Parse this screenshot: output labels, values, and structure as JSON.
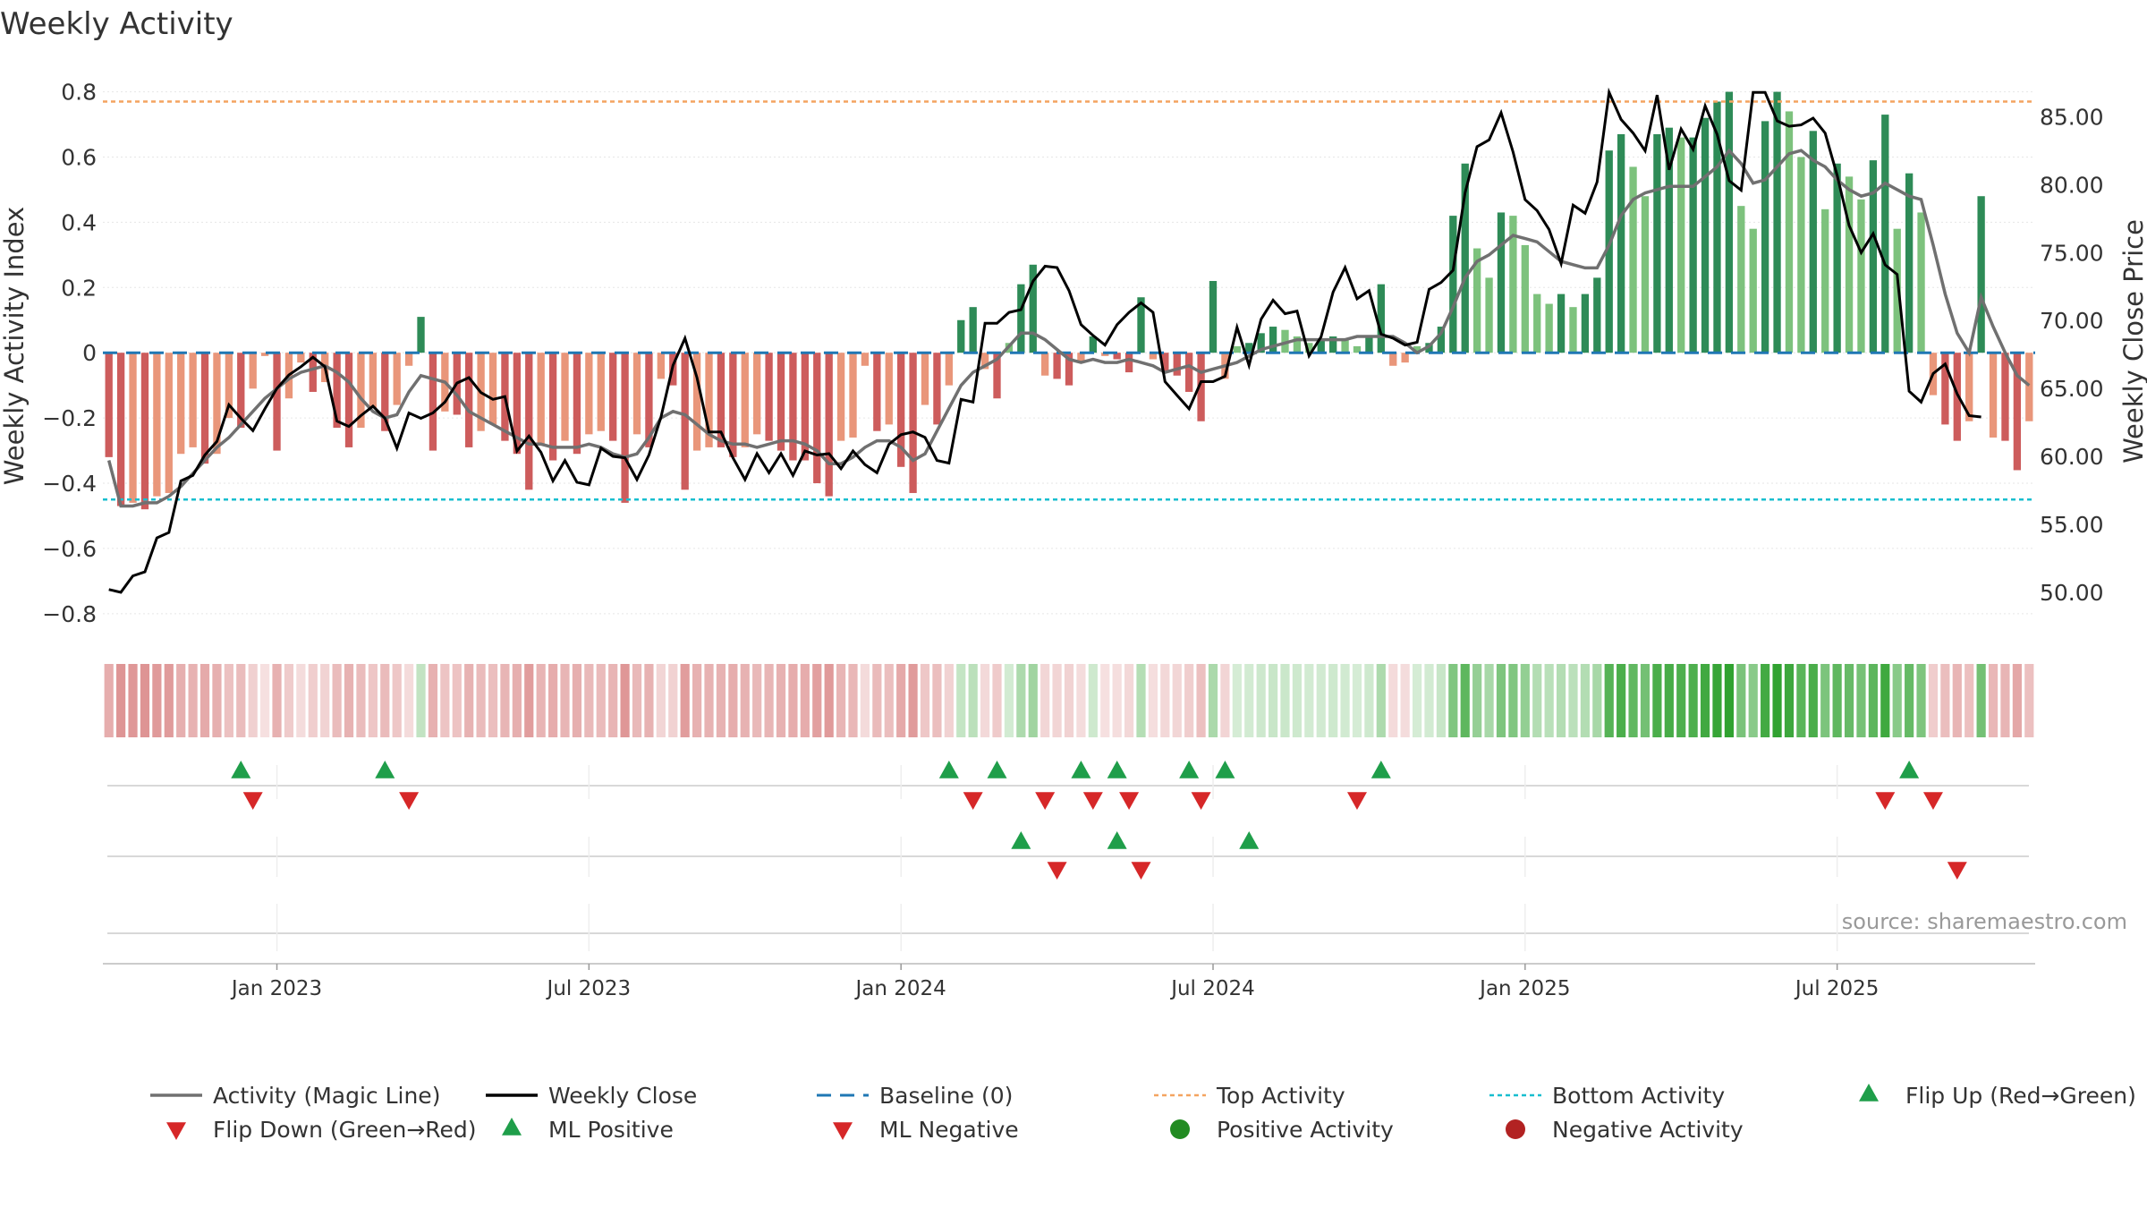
{
  "chart_data": {
    "type": "bar",
    "title": "Weekly Activity",
    "ylabel": "Weekly Activity Index",
    "ylabel_right": "Weekly Close Price",
    "source": "source: sharemaestro.com",
    "ylim": [
      -0.88,
      0.84
    ],
    "ylim_right": [
      46.5,
      87.8
    ],
    "yticks": [
      {
        "v": 0.8,
        "label": "0.8"
      },
      {
        "v": 0.6,
        "label": "0.6"
      },
      {
        "v": 0.4,
        "label": "0.4"
      },
      {
        "v": 0.2,
        "label": "0.2"
      },
      {
        "v": 0,
        "label": "0"
      },
      {
        "v": -0.2,
        "label": "−0.2"
      },
      {
        "v": -0.4,
        "label": "−0.4"
      },
      {
        "v": -0.6,
        "label": "−0.6"
      },
      {
        "v": -0.8,
        "label": "−0.8"
      }
    ],
    "yticks_right": [
      {
        "v": 85,
        "label": "85.00"
      },
      {
        "v": 80,
        "label": "80.00"
      },
      {
        "v": 75,
        "label": "75.00"
      },
      {
        "v": 70,
        "label": "70.00"
      },
      {
        "v": 65,
        "label": "65.00"
      },
      {
        "v": 60,
        "label": "60.00"
      },
      {
        "v": 55,
        "label": "55.00"
      },
      {
        "v": 50,
        "label": "50.00"
      }
    ],
    "xticks": [
      {
        "week": 14.5,
        "label": "Jan 2023"
      },
      {
        "week": 40.5,
        "label": "Jul 2023"
      },
      {
        "week": 66.5,
        "label": "Jan 2024"
      },
      {
        "week": 92.5,
        "label": "Jul 2024"
      },
      {
        "week": 118.5,
        "label": "Jan 2025"
      },
      {
        "week": 144.5,
        "label": "Jul 2025"
      }
    ],
    "top_activity": 0.77,
    "bottom_activity": -0.45,
    "activity_index": [
      -0.32,
      -0.47,
      -0.46,
      -0.48,
      -0.44,
      -0.43,
      -0.31,
      -0.29,
      -0.34,
      -0.31,
      -0.2,
      -0.23,
      -0.11,
      -0.01,
      -0.3,
      -0.14,
      -0.03,
      -0.12,
      -0.09,
      -0.23,
      -0.29,
      -0.23,
      -0.17,
      -0.24,
      -0.16,
      -0.04,
      0.11,
      -0.3,
      -0.18,
      -0.19,
      -0.29,
      -0.24,
      -0.22,
      -0.27,
      -0.31,
      -0.42,
      -0.28,
      -0.33,
      -0.27,
      -0.31,
      -0.25,
      -0.24,
      -0.27,
      -0.46,
      -0.25,
      -0.29,
      -0.08,
      -0.1,
      -0.42,
      -0.3,
      -0.29,
      -0.29,
      -0.32,
      -0.29,
      -0.25,
      -0.27,
      -0.3,
      -0.33,
      -0.33,
      -0.4,
      -0.44,
      -0.27,
      -0.26,
      -0.04,
      -0.24,
      -0.22,
      -0.35,
      -0.43,
      -0.16,
      -0.22,
      -0.1,
      0.1,
      0.14,
      -0.05,
      -0.14,
      0.03,
      0.21,
      0.27,
      -0.07,
      -0.08,
      -0.1,
      -0.03,
      0.05,
      -0.01,
      -0.02,
      -0.06,
      0.17,
      -0.02,
      -0.06,
      -0.07,
      -0.12,
      -0.21,
      0.22,
      -0.08,
      0.02,
      0.03,
      0.06,
      0.08,
      0.07,
      0.05,
      0.03,
      0.04,
      0.05,
      0.04,
      0.02,
      0.05,
      0.21,
      -0.04,
      -0.03,
      0.02,
      0.03,
      0.08,
      0.42,
      0.58,
      0.32,
      0.23,
      0.43,
      0.42,
      0.33,
      0.18,
      0.15,
      0.18,
      0.14,
      0.18,
      0.23,
      0.62,
      0.67,
      0.57,
      0.48,
      0.67,
      0.69,
      0.66,
      0.66,
      0.72,
      0.77,
      0.8,
      0.45,
      0.38,
      0.71,
      0.8,
      0.74,
      0.6,
      0.68,
      0.44,
      0.58,
      0.54,
      0.47,
      0.59,
      0.73,
      0.38,
      0.55,
      0.43,
      -0.13,
      -0.22,
      -0.27,
      -0.21,
      0.48,
      -0.26,
      -0.27,
      -0.36,
      -0.21
    ],
    "magic_line": [
      -0.33,
      -0.47,
      -0.47,
      -0.46,
      -0.46,
      -0.44,
      -0.41,
      -0.37,
      -0.33,
      -0.29,
      -0.26,
      -0.22,
      -0.18,
      -0.14,
      -0.11,
      -0.08,
      -0.06,
      -0.05,
      -0.04,
      -0.06,
      -0.09,
      -0.14,
      -0.18,
      -0.2,
      -0.19,
      -0.12,
      -0.07,
      -0.08,
      -0.09,
      -0.13,
      -0.18,
      -0.2,
      -0.22,
      -0.24,
      -0.26,
      -0.28,
      -0.28,
      -0.29,
      -0.29,
      -0.29,
      -0.28,
      -0.29,
      -0.31,
      -0.32,
      -0.31,
      -0.26,
      -0.2,
      -0.18,
      -0.19,
      -0.22,
      -0.25,
      -0.27,
      -0.28,
      -0.28,
      -0.29,
      -0.28,
      -0.27,
      -0.27,
      -0.28,
      -0.3,
      -0.34,
      -0.34,
      -0.32,
      -0.29,
      -0.27,
      -0.27,
      -0.29,
      -0.33,
      -0.31,
      -0.24,
      -0.17,
      -0.1,
      -0.06,
      -0.04,
      -0.02,
      0.02,
      0.06,
      0.06,
      0.04,
      0.01,
      -0.02,
      -0.03,
      -0.02,
      -0.03,
      -0.03,
      -0.02,
      -0.03,
      -0.04,
      -0.06,
      -0.05,
      -0.04,
      -0.06,
      -0.05,
      -0.04,
      -0.03,
      -0.01,
      0.01,
      0.02,
      0.03,
      0.04,
      0.04,
      0.04,
      0.04,
      0.04,
      0.05,
      0.05,
      0.05,
      0.05,
      0.03,
      0.0,
      0.02,
      0.06,
      0.14,
      0.23,
      0.28,
      0.3,
      0.33,
      0.36,
      0.35,
      0.34,
      0.31,
      0.28,
      0.27,
      0.26,
      0.26,
      0.33,
      0.42,
      0.47,
      0.49,
      0.5,
      0.51,
      0.51,
      0.51,
      0.54,
      0.57,
      0.62,
      0.58,
      0.52,
      0.53,
      0.57,
      0.61,
      0.62,
      0.59,
      0.57,
      0.53,
      0.5,
      0.48,
      0.49,
      0.52,
      0.5,
      0.48,
      0.47,
      0.33,
      0.18,
      0.06,
      0.0,
      0.17,
      0.08,
      0.0,
      -0.07,
      -0.1
    ],
    "weekly_close": [
      50.2,
      50.0,
      51.2,
      51.5,
      54.0,
      54.4,
      58.2,
      58.6,
      60.1,
      61.1,
      63.8,
      62.8,
      61.9,
      63.5,
      65.0,
      66.0,
      66.6,
      67.3,
      66.6,
      62.6,
      62.2,
      63.0,
      63.7,
      62.8,
      60.6,
      63.2,
      62.8,
      63.2,
      64.0,
      65.4,
      65.8,
      64.7,
      64.2,
      64.4,
      60.4,
      61.5,
      60.3,
      58.2,
      59.7,
      58.1,
      57.9,
      60.6,
      60.0,
      59.9,
      58.3,
      60.1,
      62.9,
      66.7,
      68.7,
      65.8,
      61.8,
      61.8,
      59.9,
      58.3,
      60.2,
      58.8,
      60.2,
      58.6,
      60.4,
      60.1,
      60.2,
      59.1,
      60.4,
      59.4,
      58.8,
      60.9,
      61.6,
      61.8,
      61.4,
      59.7,
      59.5,
      64.2,
      64.0,
      69.8,
      69.8,
      70.6,
      70.8,
      72.9,
      74.0,
      73.9,
      72.2,
      69.7,
      68.9,
      68.2,
      69.7,
      70.6,
      71.3,
      70.6,
      65.5,
      64.5,
      63.5,
      65.5,
      65.5,
      65.9,
      69.5,
      66.7,
      70.1,
      71.5,
      70.5,
      70.7,
      67.4,
      68.8,
      72.1,
      73.9,
      71.6,
      72.2,
      69.0,
      68.7,
      68.2,
      68.4,
      72.3,
      72.8,
      73.7,
      79.4,
      82.8,
      83.3,
      85.3,
      82.4,
      78.9,
      78.1,
      76.7,
      74.2,
      78.5,
      77.9,
      80.2,
      86.8,
      84.8,
      83.8,
      82.5,
      86.6,
      81.1,
      84.1,
      82.6,
      85.8,
      83.7,
      80.3,
      79.6,
      86.8,
      86.8,
      84.7,
      84.3,
      84.4,
      84.9,
      83.8,
      80.7,
      77.0,
      75.0,
      76.4,
      74.1,
      73.4,
      64.8,
      64.0,
      66.1,
      66.8,
      64.6,
      63.0,
      62.9
    ],
    "flip_up_weeks": [
      11.5,
      23.5,
      70.5,
      74.5,
      81.5,
      84.5,
      90.5,
      93.5,
      106.5,
      150.5
    ],
    "flip_down_weeks": [
      12.5,
      25.5,
      72.5,
      78.5,
      82.5,
      85.5,
      91.5,
      104.5,
      148.5,
      152.5
    ],
    "ml_positive_weeks": [
      76.5,
      84.5,
      95.5
    ],
    "ml_negative_weeks": [
      79.5,
      86.5,
      154.5
    ],
    "colors": {
      "strong_green": "#2e8b57",
      "light_green": "#7dc27d",
      "strong_red": "#cd5c5c",
      "light_red": "#e9967a",
      "magic_line": "#707070",
      "close_line": "#000000",
      "baseline": "#1f77b4",
      "top_line": "#f4a460",
      "bottom_line": "#17becf",
      "marker_up": "#1f9e4a",
      "marker_down": "#d62728",
      "pos_dot": "#228b22",
      "neg_dot": "#b22222",
      "heat_green": "#2ca02c",
      "heat_red": "#cd5c5c"
    },
    "legend": [
      {
        "label": "Activity (Magic Line)",
        "kind": "line",
        "color": "#707070"
      },
      {
        "label": "Weekly Close",
        "kind": "line",
        "color": "#000000"
      },
      {
        "label": "Baseline (0)",
        "kind": "dash",
        "color": "#1f77b4"
      },
      {
        "label": "Top Activity",
        "kind": "dot-line",
        "color": "#f4a460"
      },
      {
        "label": "Bottom Activity",
        "kind": "dot-line",
        "color": "#17becf"
      },
      {
        "label": "Flip Up (Red→Green)",
        "kind": "tri-up",
        "color": "#1f9e4a"
      },
      {
        "label": "Flip Down (Green→Red)",
        "kind": "tri-down",
        "color": "#d62728"
      },
      {
        "label": "ML Positive",
        "kind": "tri-up",
        "color": "#1f9e4a"
      },
      {
        "label": "ML Negative",
        "kind": "tri-down",
        "color": "#d62728"
      },
      {
        "label": "Positive Activity",
        "kind": "dot",
        "color": "#228b22"
      },
      {
        "label": "Negative Activity",
        "kind": "dot",
        "color": "#b22222"
      }
    ]
  }
}
